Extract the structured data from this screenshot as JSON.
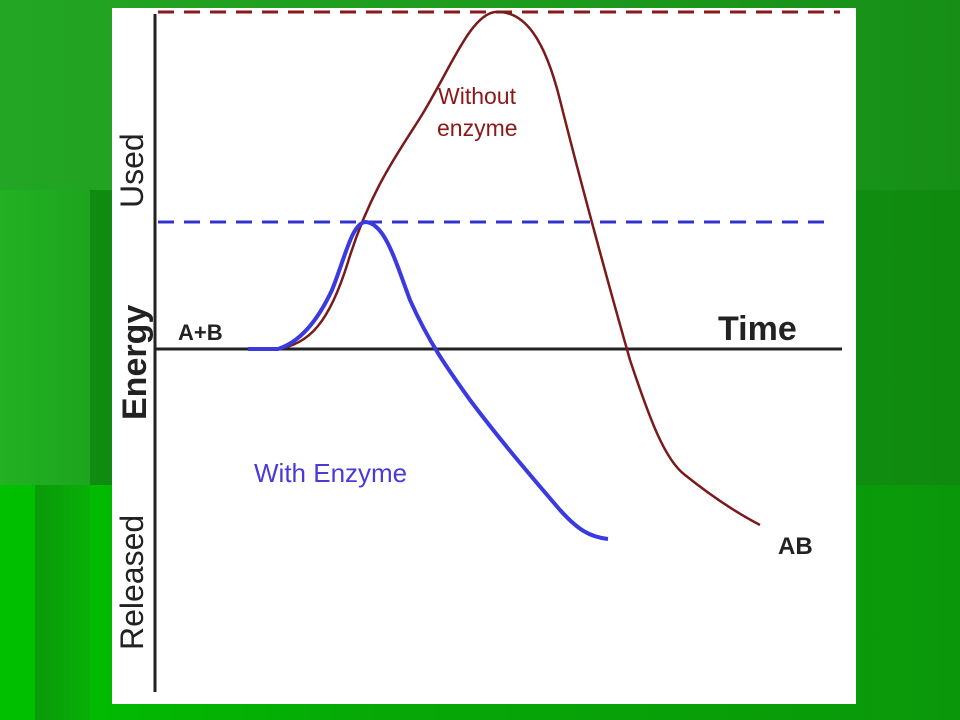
{
  "diagram": {
    "y_axis_labels": {
      "used": "Used",
      "energy": "Energy",
      "released": "Released"
    },
    "x_axis_label": "Time",
    "reactants": "A+B",
    "product": "AB",
    "curve_without_enzyme": "Without",
    "curve_without_enzyme_line2": "enzyme",
    "curve_with_enzyme": "With Enzyme",
    "colors": {
      "without_enzyme": "#7a1a1a",
      "with_enzyme": "#3a3adf",
      "axis": "#222222",
      "slide_background": "#1f9a1f"
    }
  }
}
